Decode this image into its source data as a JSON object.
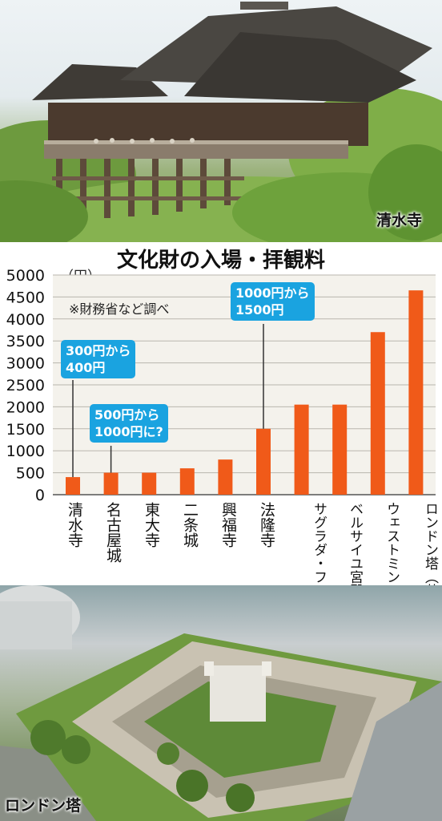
{
  "photos": {
    "top_label": "清水寺",
    "bottom_label": "ロンドン塔"
  },
  "chart_data": {
    "type": "bar",
    "title": "文化財の入場・拝観料",
    "ylabel": "（円）",
    "note": "※財務省など調べ",
    "ylim": [
      0,
      5000
    ],
    "yticks": [
      "0",
      "500",
      "1000",
      "1500",
      "2000",
      "2500",
      "3000",
      "3500",
      "4000",
      "4500",
      "5000"
    ],
    "categories": [
      "清水寺",
      "名古屋城",
      "東大寺",
      "二条城",
      "興福寺",
      "法隆寺",
      "サグラダ・ファミリア（スペイン）",
      "ベルサイユ宮殿（フランス）",
      "ウェストミンスター寺院（英国）",
      "ロンドン塔（英国）"
    ],
    "values": [
      400,
      500,
      500,
      600,
      800,
      1500,
      2050,
      2050,
      3700,
      4650
    ],
    "bar_color": "#f05a19",
    "annotations": [
      {
        "category": "清水寺",
        "lines": [
          "300円から",
          "400円"
        ]
      },
      {
        "category": "名古屋城",
        "lines": [
          "500円から",
          "1000円に?"
        ]
      },
      {
        "category": "法隆寺",
        "lines": [
          "1000円から",
          "1500円"
        ]
      }
    ],
    "callout_color": "#1aa3e0",
    "grid": true
  }
}
